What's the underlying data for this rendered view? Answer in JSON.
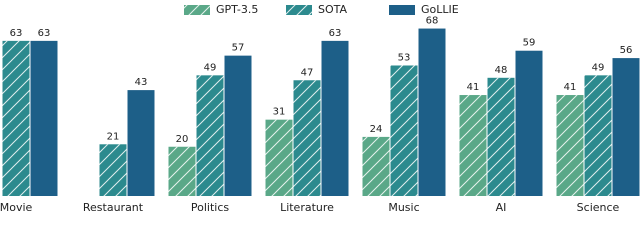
{
  "chart_data": {
    "type": "bar",
    "categories": [
      "Movie",
      "Restaurant",
      "Politics",
      "Literature",
      "Music",
      "AI",
      "Science"
    ],
    "series": [
      {
        "name": "GPT-3.5",
        "color": "#5aa888",
        "hatch": true,
        "values": [
          null,
          null,
          20,
          31,
          24,
          41,
          41
        ]
      },
      {
        "name": "SOTA",
        "color": "#2c8a8e",
        "hatch": true,
        "values": [
          63,
          21,
          49,
          47,
          53,
          48,
          49
        ]
      },
      {
        "name": "GoLLIE",
        "color": "#1d5f88",
        "hatch": false,
        "values": [
          63,
          43,
          57,
          63,
          68,
          59,
          56
        ]
      }
    ],
    "ylim": [
      0,
      80
    ]
  }
}
